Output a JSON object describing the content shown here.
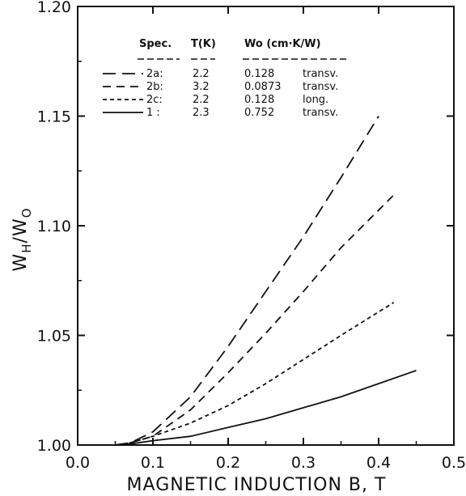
{
  "chart_data": {
    "type": "line",
    "xlabel": "MAGNETIC INDUCTION B, T",
    "ylabel_main": "W",
    "ylabel_sub1": "H",
    "ylabel_sep": "/W",
    "ylabel_sub2": "O",
    "xlim": [
      0.0,
      0.5
    ],
    "ylim": [
      1.0,
      1.2
    ],
    "x_ticks": [
      0.0,
      0.1,
      0.2,
      0.3,
      0.4,
      0.5
    ],
    "x_tick_labels": [
      "0.0",
      "0.1",
      "0.2",
      "0.3",
      "0.4",
      "0.5"
    ],
    "y_ticks": [
      1.0,
      1.05,
      1.1,
      1.15,
      1.2
    ],
    "y_tick_labels": [
      "1.00",
      "1.05",
      "1.10",
      "1.15",
      "1.20"
    ],
    "grid": false,
    "legend_position": "top",
    "legend_headers": [
      "Spec.",
      "T(K)",
      "Wo (cm·K/W)"
    ],
    "series": [
      {
        "name": "2a:",
        "T": "2.2",
        "W0": "0.128",
        "orientation": "transv.",
        "dash": "long-dash",
        "x": [
          0.05,
          0.07,
          0.1,
          0.15,
          0.2,
          0.25,
          0.3,
          0.35,
          0.4
        ],
        "y": [
          1.0,
          1.001,
          1.006,
          1.022,
          1.045,
          1.07,
          1.095,
          1.122,
          1.15
        ]
      },
      {
        "name": "2b:",
        "T": "3.2",
        "W0": "0.0873",
        "orientation": "transv.",
        "dash": "medium-dash",
        "x": [
          0.05,
          0.07,
          0.1,
          0.15,
          0.2,
          0.25,
          0.3,
          0.35,
          0.42
        ],
        "y": [
          1.0,
          1.001,
          1.004,
          1.016,
          1.033,
          1.051,
          1.07,
          1.09,
          1.114
        ]
      },
      {
        "name": "2c:",
        "T": "2.2",
        "W0": "0.128",
        "orientation": "long.",
        "dash": "short-dash",
        "x": [
          0.05,
          0.07,
          0.1,
          0.15,
          0.2,
          0.25,
          0.3,
          0.35,
          0.42
        ],
        "y": [
          1.0,
          1.001,
          1.004,
          1.01,
          1.018,
          1.028,
          1.039,
          1.05,
          1.065
        ]
      },
      {
        "name": "1 :",
        "T": "2.3",
        "W0": "0.752",
        "orientation": "transv.",
        "dash": "solid",
        "x": [
          0.06,
          0.08,
          0.1,
          0.15,
          0.2,
          0.25,
          0.3,
          0.35,
          0.4,
          0.45
        ],
        "y": [
          1.0,
          1.001,
          1.002,
          1.004,
          1.008,
          1.012,
          1.017,
          1.022,
          1.028,
          1.034
        ]
      }
    ]
  }
}
